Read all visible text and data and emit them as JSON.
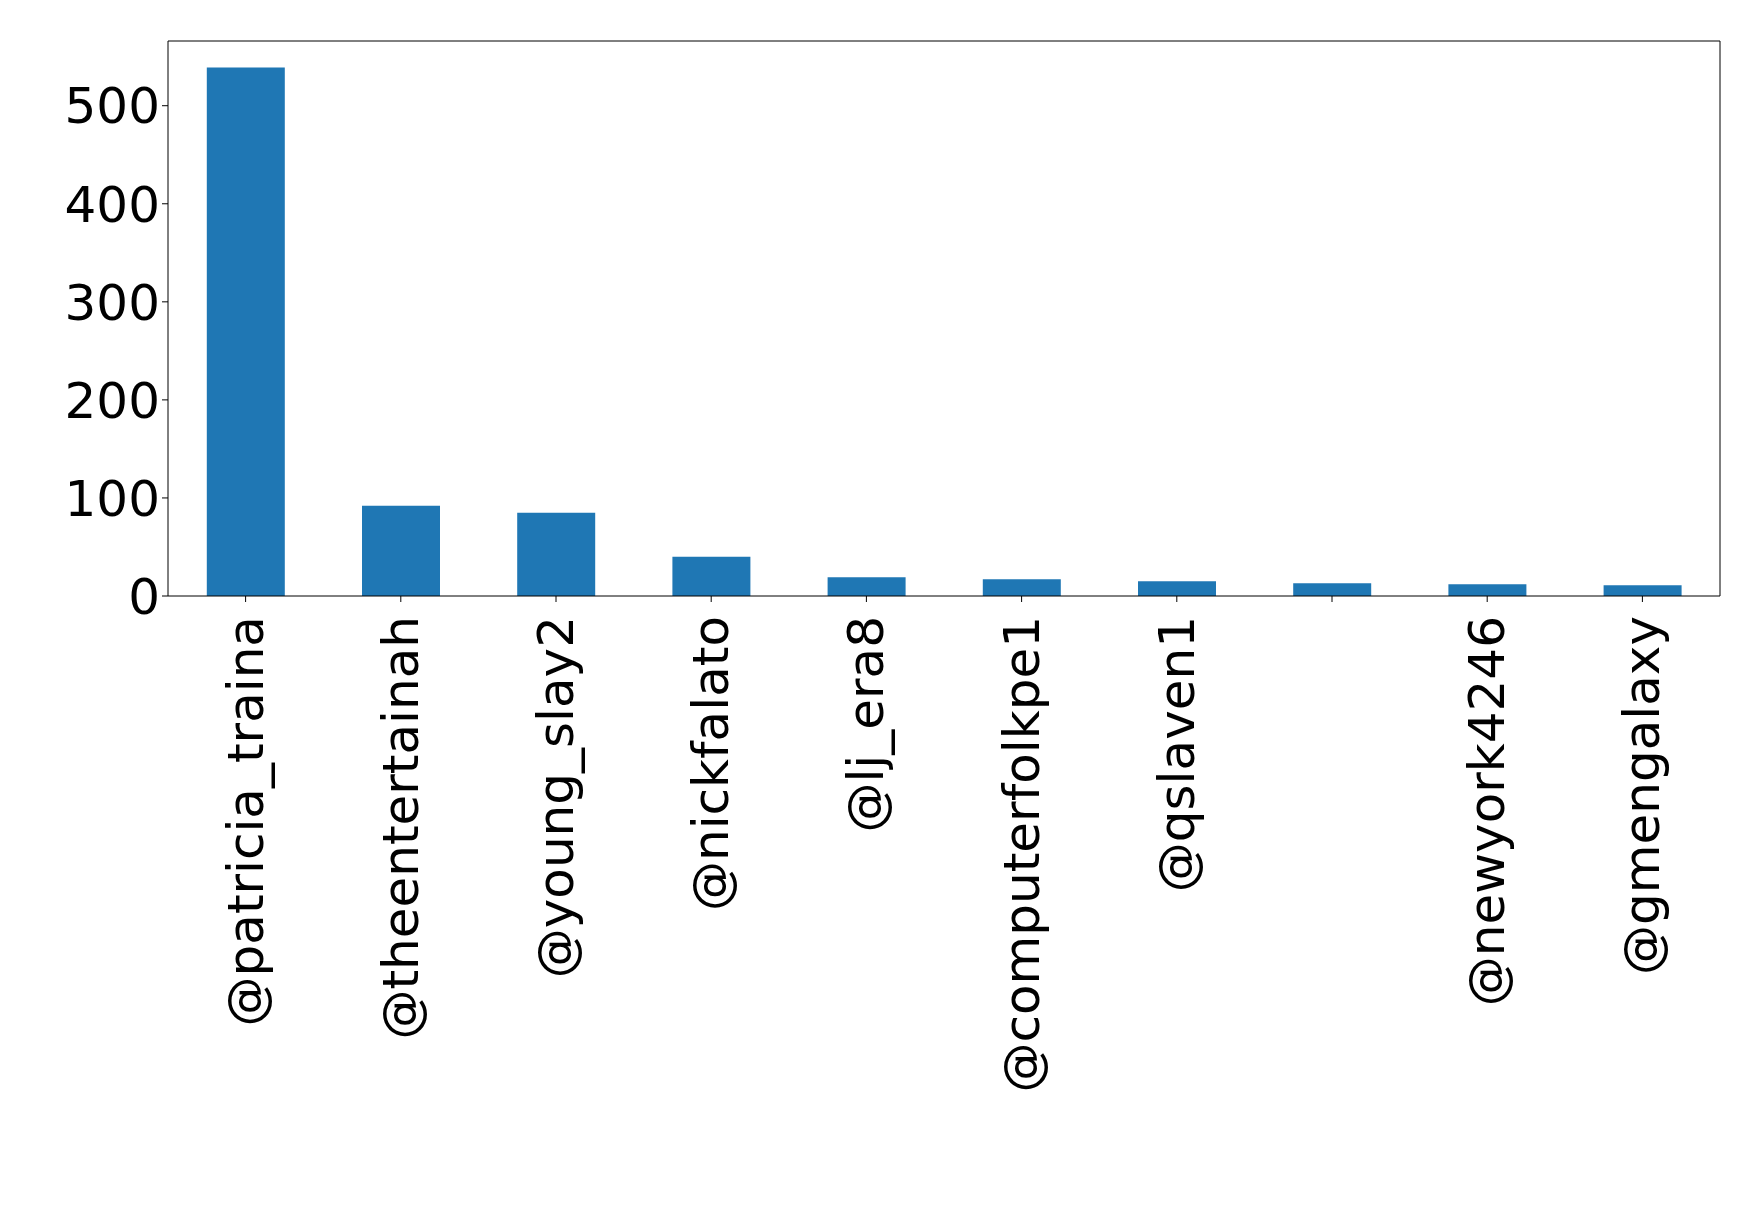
{
  "chart_data": {
    "type": "bar",
    "categories": [
      "@patricia_traina",
      "@theentertainah",
      "@young_slay2",
      "@nickfalato",
      "@lj_era8",
      "@computerfolkpe1",
      "@qslaven1",
      null,
      "@newyork4246",
      "@gmengalaxy"
    ],
    "values": [
      539,
      92,
      85,
      40,
      19,
      17,
      15,
      13,
      12,
      11
    ],
    "color": "#1f77b4",
    "ylim": [
      0,
      566
    ],
    "yticks": [
      0,
      100,
      200,
      300,
      400,
      500
    ],
    "grid": false,
    "legend": false
  }
}
